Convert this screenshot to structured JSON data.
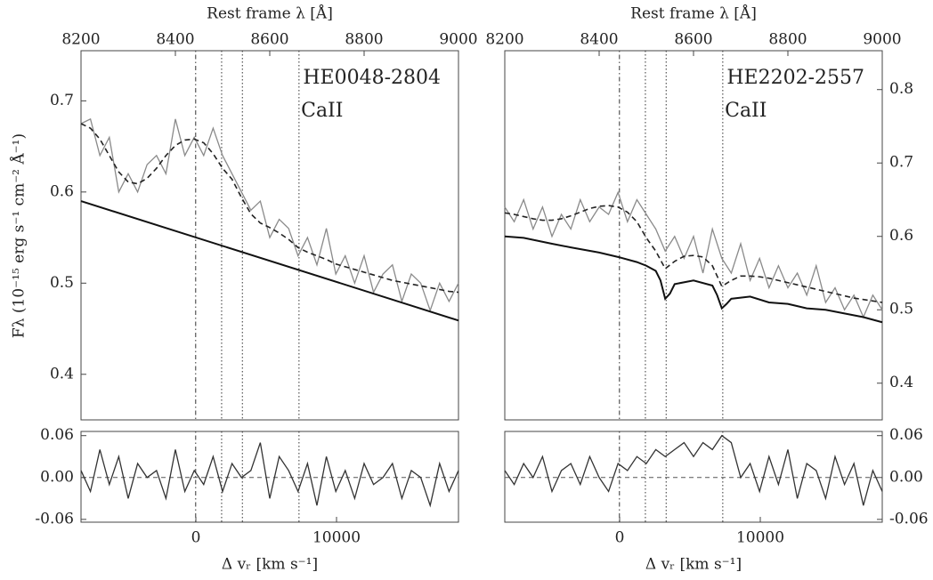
{
  "chart_data": [
    {
      "type": "line",
      "annotation": "HE0048-2804",
      "line_label": "CaII",
      "ylabel": "Fλ (10⁻¹⁵ erg s⁻¹ cm⁻² Å⁻¹)",
      "x_top_label": "Rest frame λ [Å]",
      "xlim": [
        8200,
        9000
      ],
      "xticks": [
        8200,
        8400,
        8600,
        8800,
        9000
      ],
      "x_bottom_label": "Δ vᵣ [km s⁻¹]",
      "x2lim": [
        -8165,
        18670
      ],
      "x2ticks": [
        0,
        10000
      ],
      "ylim": [
        0.35,
        0.755
      ],
      "yticks": [
        0.4,
        0.5,
        0.6,
        0.7
      ],
      "ytick_side": "left",
      "markers": [
        8443,
        8498,
        8542,
        8662
      ],
      "x": [
        8200,
        8220,
        8240,
        8260,
        8280,
        8300,
        8320,
        8340,
        8360,
        8380,
        8400,
        8420,
        8440,
        8460,
        8480,
        8500,
        8520,
        8540,
        8560,
        8580,
        8600,
        8620,
        8640,
        8660,
        8680,
        8700,
        8720,
        8740,
        8760,
        8780,
        8800,
        8820,
        8840,
        8860,
        8880,
        8900,
        8920,
        8940,
        8960,
        8980,
        9000
      ],
      "series": [
        {
          "color": "#8a8a8a",
          "style": "solid",
          "width": 1.3,
          "values": [
            0.675,
            0.68,
            0.64,
            0.66,
            0.6,
            0.62,
            0.6,
            0.63,
            0.64,
            0.62,
            0.68,
            0.64,
            0.66,
            0.64,
            0.67,
            0.64,
            0.62,
            0.6,
            0.58,
            0.59,
            0.55,
            0.57,
            0.56,
            0.53,
            0.55,
            0.52,
            0.56,
            0.51,
            0.53,
            0.5,
            0.53,
            0.49,
            0.51,
            0.52,
            0.48,
            0.51,
            0.5,
            0.47,
            0.5,
            0.48,
            0.5
          ]
        },
        {
          "color": "#222222",
          "style": "dashed",
          "width": 1.6,
          "values": [
            0.675,
            0.67,
            0.658,
            0.64,
            0.622,
            0.611,
            0.609,
            0.615,
            0.626,
            0.64,
            0.651,
            0.657,
            0.658,
            0.654,
            0.642,
            0.626,
            0.614,
            0.594,
            0.576,
            0.566,
            0.561,
            0.555,
            0.548,
            0.539,
            0.534,
            0.53,
            0.526,
            0.521,
            0.518,
            0.515,
            0.512,
            0.509,
            0.506,
            0.503,
            0.501,
            0.499,
            0.497,
            0.495,
            0.493,
            0.491,
            0.49
          ]
        },
        {
          "color": "#111111",
          "style": "solid",
          "width": 2,
          "x": [
            8200,
            9000
          ],
          "values": [
            0.59,
            0.459
          ]
        }
      ],
      "residual": {
        "ylim": [
          -0.064,
          0.066
        ],
        "yticks": [
          0.06,
          {
            "value": 0,
            "label": "0.00"
          },
          -0.06
        ],
        "color": "#333333",
        "values": [
          0.01,
          -0.02,
          0.04,
          -0.01,
          0.03,
          -0.03,
          0.02,
          0.0,
          0.01,
          -0.03,
          0.04,
          -0.02,
          0.01,
          -0.01,
          0.03,
          -0.02,
          0.02,
          0.0,
          0.01,
          0.05,
          -0.03,
          0.03,
          0.01,
          -0.02,
          0.02,
          -0.04,
          0.03,
          -0.02,
          0.01,
          -0.03,
          0.02,
          -0.01,
          0.0,
          0.02,
          -0.03,
          0.01,
          0.0,
          -0.04,
          0.02,
          -0.02,
          0.01
        ]
      }
    },
    {
      "type": "line",
      "annotation": "HE2202-2557",
      "line_label": "CaII",
      "x_top_label": "Rest frame λ [Å]",
      "xlim": [
        8200,
        9000
      ],
      "xticks": [
        8200,
        8400,
        8600,
        8800,
        9000
      ],
      "x_bottom_label": "Δ vᵣ [km s⁻¹]",
      "x2lim": [
        -8165,
        18670
      ],
      "x2ticks": [
        0,
        10000
      ],
      "ylim": [
        0.35,
        0.853
      ],
      "yticks": [
        0.4,
        0.5,
        0.6,
        0.7,
        0.8
      ],
      "ytick_side": "right",
      "markers": [
        8443,
        8498,
        8542,
        8662
      ],
      "x": [
        8200,
        8220,
        8240,
        8260,
        8280,
        8300,
        8320,
        8340,
        8360,
        8380,
        8400,
        8420,
        8440,
        8460,
        8480,
        8500,
        8520,
        8540,
        8560,
        8580,
        8600,
        8620,
        8640,
        8660,
        8680,
        8700,
        8720,
        8740,
        8760,
        8780,
        8800,
        8820,
        8840,
        8860,
        8880,
        8900,
        8920,
        8940,
        8960,
        8980,
        9000
      ],
      "series": [
        {
          "color": "#8a8a8a",
          "style": "solid",
          "width": 1.3,
          "values": [
            0.64,
            0.62,
            0.65,
            0.61,
            0.64,
            0.6,
            0.63,
            0.61,
            0.65,
            0.62,
            0.64,
            0.63,
            0.66,
            0.62,
            0.65,
            0.63,
            0.61,
            0.58,
            0.6,
            0.57,
            0.6,
            0.55,
            0.61,
            0.57,
            0.55,
            0.59,
            0.54,
            0.57,
            0.53,
            0.56,
            0.53,
            0.55,
            0.52,
            0.56,
            0.51,
            0.53,
            0.5,
            0.52,
            0.49,
            0.52,
            0.5
          ]
        },
        {
          "color": "#222222",
          "style": "dashed",
          "width": 1.6,
          "values": [
            0.632,
            0.63,
            0.627,
            0.624,
            0.622,
            0.622,
            0.624,
            0.628,
            0.633,
            0.638,
            0.641,
            0.642,
            0.64,
            0.633,
            0.62,
            0.598,
            0.58,
            0.556,
            0.566,
            0.573,
            0.574,
            0.572,
            0.56,
            0.532,
            0.54,
            0.546,
            0.546,
            0.545,
            0.543,
            0.54,
            0.537,
            0.534,
            0.531,
            0.528,
            0.525,
            0.522,
            0.519,
            0.516,
            0.514,
            0.512,
            0.51
          ]
        },
        {
          "color": "#111111",
          "style": "solid",
          "width": 2,
          "x": [
            8200,
            8240,
            8300,
            8340,
            8400,
            8440,
            8480,
            8500,
            8520,
            8530,
            8540,
            8550,
            8560,
            8600,
            8640,
            8650,
            8660,
            8670,
            8680,
            8720,
            8760,
            8800,
            8840,
            8880,
            8920,
            8960,
            9000
          ],
          "values": [
            0.6,
            0.598,
            0.59,
            0.585,
            0.578,
            0.572,
            0.565,
            0.56,
            0.553,
            0.54,
            0.515,
            0.522,
            0.535,
            0.54,
            0.533,
            0.52,
            0.502,
            0.508,
            0.515,
            0.518,
            0.51,
            0.508,
            0.502,
            0.5,
            0.495,
            0.49,
            0.483
          ]
        }
      ],
      "residual": {
        "ylim": [
          -0.064,
          0.066
        ],
        "yticks": [
          0.06,
          {
            "value": 0,
            "label": "0.00"
          },
          -0.06
        ],
        "color": "#333333",
        "values": [
          0.01,
          -0.01,
          0.02,
          0.0,
          0.03,
          -0.02,
          0.01,
          0.02,
          -0.01,
          0.03,
          0.0,
          -0.02,
          0.02,
          0.01,
          0.03,
          0.02,
          0.04,
          0.03,
          0.04,
          0.05,
          0.03,
          0.05,
          0.04,
          0.06,
          0.05,
          0.0,
          0.02,
          -0.02,
          0.03,
          -0.01,
          0.04,
          -0.03,
          0.02,
          0.01,
          -0.03,
          0.03,
          -0.01,
          0.02,
          -0.04,
          0.01,
          -0.02
        ]
      }
    }
  ]
}
